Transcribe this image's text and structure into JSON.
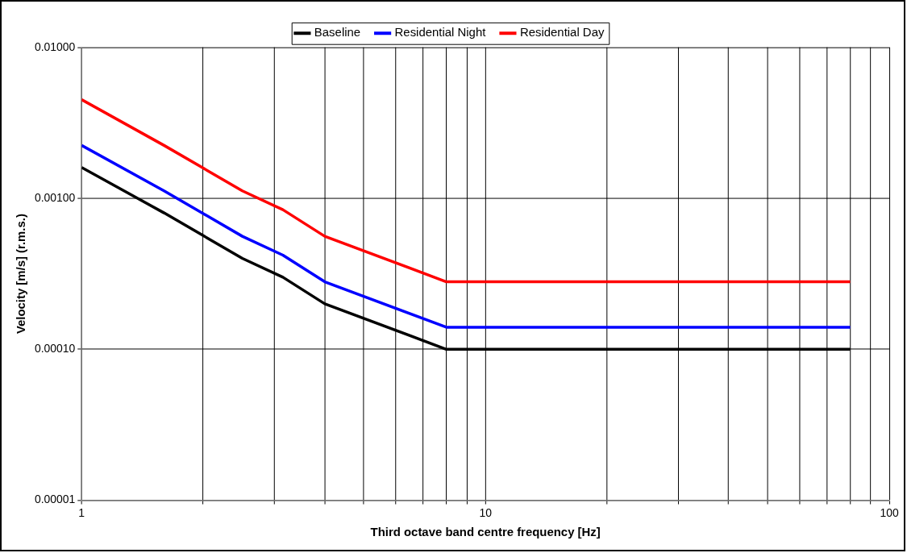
{
  "chart_data": {
    "type": "line",
    "xlabel": "Third octave band centre frequency [Hz]",
    "ylabel": "Velocity [m/s] (r.m.s.)",
    "log": "xy",
    "x": [
      1,
      1.6,
      2.5,
      3.15,
      4,
      8,
      80
    ],
    "series": [
      {
        "name": "Baseline",
        "color": "#000000",
        "values": [
          0.0016,
          0.0008,
          0.0004,
          0.0003,
          0.0002,
          0.0001,
          0.0001
        ]
      },
      {
        "name": "Residential Night",
        "color": "#0000ff",
        "values": [
          0.00224,
          0.00112,
          0.00056,
          0.00042,
          0.00028,
          0.00014,
          0.00014
        ]
      },
      {
        "name": "Residential Day",
        "color": "#ff0000",
        "values": [
          0.0045,
          0.00224,
          0.00112,
          0.00084,
          0.00056,
          0.00028,
          0.00028
        ]
      }
    ],
    "xlim": [
      1,
      100
    ],
    "xticks": [
      1,
      {
        "value": 2,
        "label": null
      },
      {
        "value": 3,
        "label": null
      },
      {
        "value": 4,
        "label": null
      },
      {
        "value": 5,
        "label": null
      },
      {
        "value": 6,
        "label": null
      },
      {
        "value": 7,
        "label": null
      },
      {
        "value": 8,
        "label": null
      },
      {
        "value": 9,
        "label": null
      },
      10,
      {
        "value": 20,
        "label": null
      },
      {
        "value": 30,
        "label": null
      },
      {
        "value": 40,
        "label": null
      },
      {
        "value": 50,
        "label": null
      },
      {
        "value": 60,
        "label": null
      },
      {
        "value": 70,
        "label": null
      },
      {
        "value": 80,
        "label": null
      },
      {
        "value": 90,
        "label": null
      },
      100
    ],
    "ylim": [
      1e-05,
      0.01
    ],
    "yticks": [
      {
        "value": 1e-05,
        "label": "0.00001"
      },
      {
        "value": 0.0001,
        "label": "0.00010"
      },
      {
        "value": 0.001,
        "label": "0.00100"
      },
      {
        "value": 0.01,
        "label": "0.01000"
      }
    ],
    "grid": true,
    "legend": "top",
    "marker": "none",
    "line_style": "solid"
  }
}
